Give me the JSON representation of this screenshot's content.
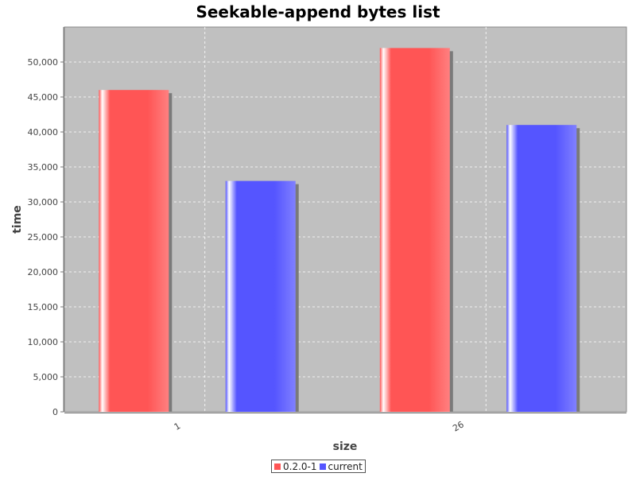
{
  "chart_data": {
    "type": "bar",
    "title": "Seekable-append bytes list",
    "xlabel": "size",
    "ylabel": "time",
    "categories": [
      "1",
      "26"
    ],
    "series": [
      {
        "name": "0.2.0-1",
        "values": [
          46000,
          52000
        ],
        "color": "#ff5555"
      },
      {
        "name": "current",
        "values": [
          33000,
          41000
        ],
        "color": "#5555ff"
      }
    ],
    "ylim": [
      0,
      55000
    ],
    "yticks": [
      0,
      5000,
      10000,
      15000,
      20000,
      25000,
      30000,
      35000,
      40000,
      45000,
      50000
    ],
    "ytick_labels": [
      "0",
      "5,000",
      "10,000",
      "15,000",
      "20,000",
      "25,000",
      "30,000",
      "35,000",
      "40,000",
      "45,000",
      "50,000"
    ],
    "grid": true,
    "plot_background": "#c0c0c0",
    "legend_position": "bottom-center"
  }
}
